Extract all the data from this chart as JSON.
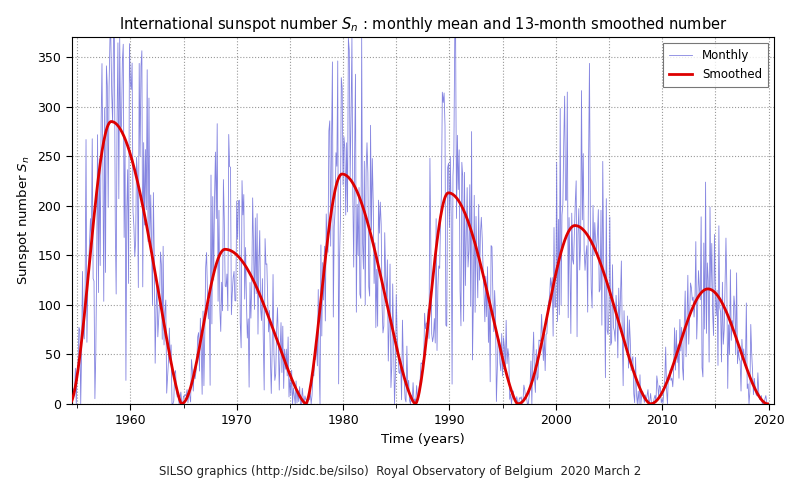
{
  "title": "International sunspot number $S_n$ : monthly mean and 13-month smoothed number",
  "xlabel": "Time (years)",
  "ylabel": "Sunspot number $S_n$",
  "footer": "SILSO graphics (http://sidc.be/silso)  Royal Observatory of Belgium  2020 March 2",
  "xlim": [
    1954.5,
    2020.5
  ],
  "ylim": [
    0,
    370
  ],
  "yticks": [
    0,
    50,
    100,
    150,
    200,
    250,
    300,
    350
  ],
  "xticks": [
    1960,
    1970,
    1980,
    1990,
    2000,
    2010,
    2020
  ],
  "minor_xticks": [
    1955,
    1965,
    1975,
    1985,
    1995,
    2005,
    2015
  ],
  "monthly_color": "#7777dd",
  "smoothed_color": "#dd0000",
  "monthly_lw": 0.6,
  "smoothed_lw": 2.0,
  "background_color": "#ffffff",
  "grid_color": "#999999",
  "legend_loc": "upper right",
  "title_fontsize": 10.5,
  "label_fontsize": 9.5,
  "tick_fontsize": 9,
  "footer_fontsize": 8.5
}
